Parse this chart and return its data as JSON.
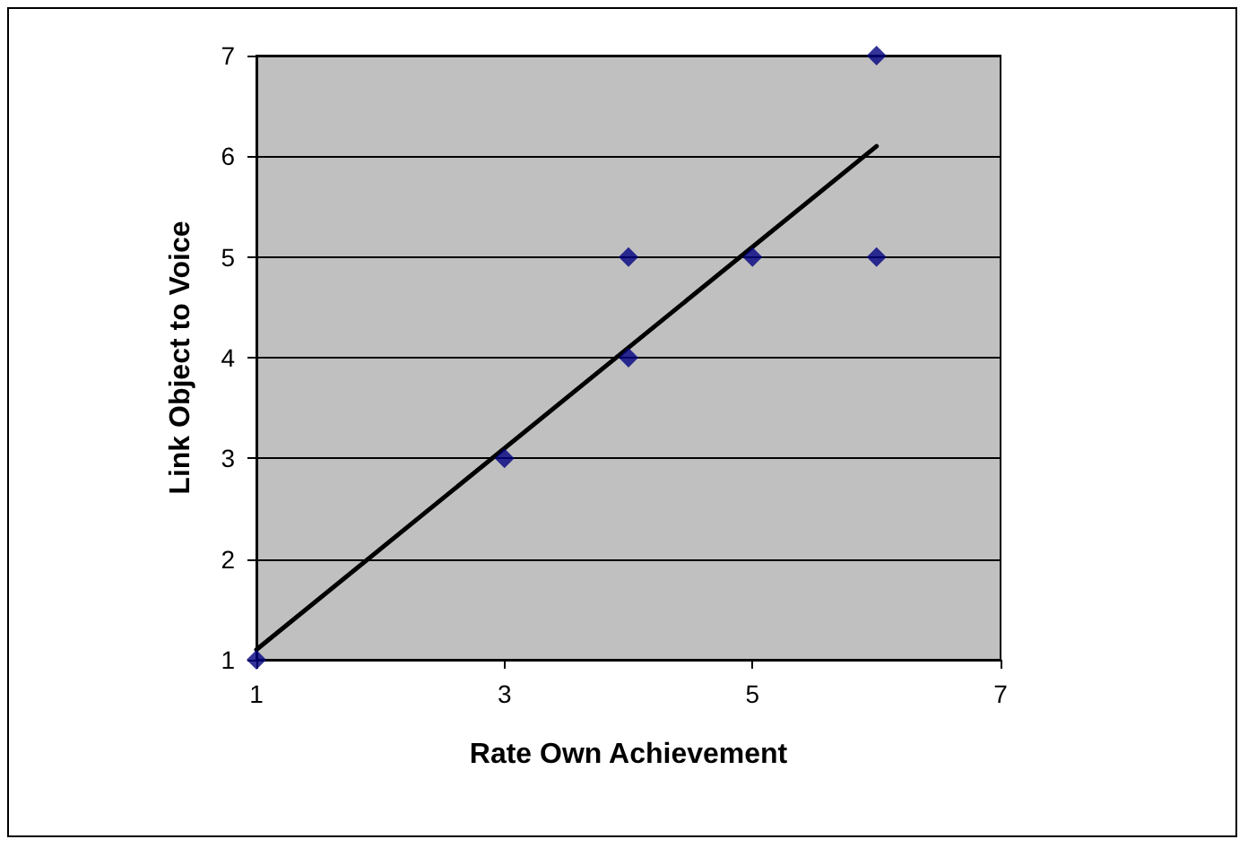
{
  "chart_data": {
    "type": "scatter",
    "xlabel": "Rate Own Achievement",
    "ylabel": "Link Object to Voice",
    "series": [
      {
        "color": "#000080",
        "x": [
          1,
          3,
          4,
          4,
          5,
          6,
          6
        ],
        "values": [
          1,
          3,
          5,
          4,
          5,
          7,
          5
        ],
        "marker": "diamond"
      },
      {
        "type": "line",
        "color": "#000000",
        "x": [
          1,
          6
        ],
        "values": [
          1.1,
          6.1
        ],
        "marker": "none"
      }
    ],
    "xlim": [
      1,
      7
    ],
    "xticks": [
      1,
      3,
      5,
      7
    ],
    "ylim": [
      1,
      7
    ],
    "yticks": [
      1,
      2,
      3,
      4,
      5,
      6,
      7
    ],
    "grid": "y"
  }
}
